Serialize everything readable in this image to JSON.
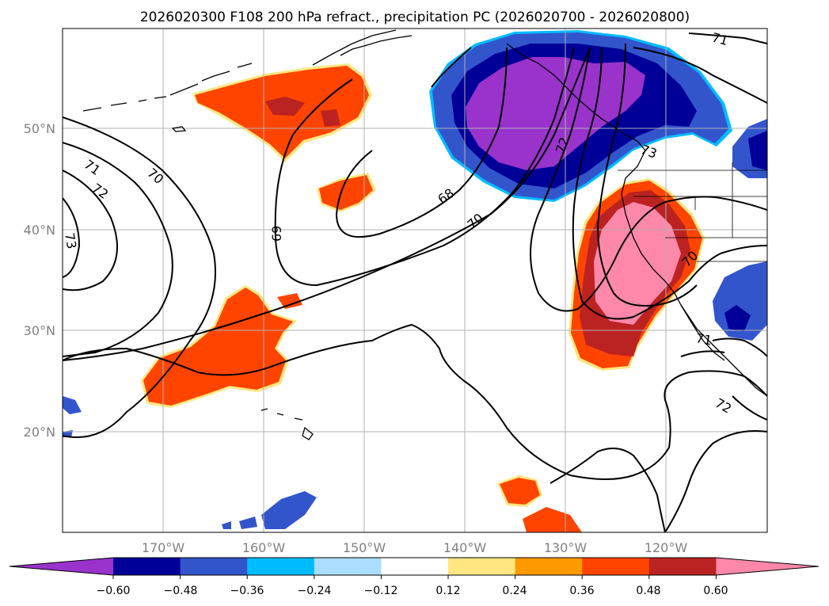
{
  "title": "2026020300 F108 200 hPa refract., precipitation PC (2026020700 - 2026020800)",
  "map": {
    "lat_labels": [
      "50°N",
      "40°N",
      "30°N",
      "20°N"
    ],
    "lon_labels": [
      "170°W",
      "160°W",
      "150°W",
      "140°W",
      "130°W",
      "120°W"
    ],
    "contour_labels": [
      "71",
      "70",
      "72",
      "73",
      "69",
      "68",
      "70",
      "72",
      "73",
      "71",
      "70",
      "71",
      "72"
    ],
    "colors": {
      "coast": "#000000",
      "grid": "#b0b0b0",
      "contour": "#000000"
    }
  },
  "colorbar": {
    "tick_labels": [
      "−0.60",
      "−0.48",
      "−0.36",
      "−0.24",
      "−0.12",
      "0.12",
      "0.24",
      "0.36",
      "0.48",
      "0.60"
    ],
    "colors": [
      "#9933cc",
      "#000099",
      "#3355cc",
      "#00bbff",
      "#aaddff",
      "#ffffff",
      "#ffe680",
      "#ff9900",
      "#ff4400",
      "#bb2222",
      "#ff88aa"
    ]
  }
}
